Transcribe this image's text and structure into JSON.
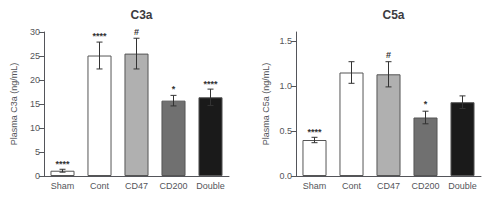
{
  "chart_data": [
    {
      "type": "bar",
      "title": "C3a",
      "ylabel": "Plasma C3a (ng/mL)",
      "categories": [
        "Sham",
        "Cont",
        "CD47",
        "CD200",
        "Double"
      ],
      "values": [
        1.1,
        25.1,
        25.5,
        15.7,
        16.4
      ],
      "errors": [
        0.3,
        2.8,
        3.2,
        1.1,
        1.7
      ],
      "colors": [
        "white",
        "white",
        "#b0b0b0",
        "#707070",
        "#1a1a1a"
      ],
      "ylim": [
        0,
        30
      ],
      "yticks": [
        0,
        5,
        10,
        15,
        20,
        25,
        30
      ],
      "grid": false,
      "annotations": [
        {
          "text": "****",
          "x": 0,
          "y": 1.5
        },
        {
          "text": "****",
          "x": 1,
          "y": 28.2
        },
        {
          "text": "#",
          "x": 2,
          "y": 29.0
        },
        {
          "text": "*",
          "x": 3,
          "y": 17.1
        },
        {
          "text": "****",
          "x": 4,
          "y": 18.3
        }
      ]
    },
    {
      "type": "bar",
      "title": "C5a",
      "ylabel": "Plasma C5a (ng/mL)",
      "categories": [
        "Sham",
        "Cont",
        "CD47",
        "CD200",
        "Double"
      ],
      "values": [
        0.4,
        1.15,
        1.13,
        0.65,
        0.82
      ],
      "errors": [
        0.03,
        0.12,
        0.14,
        0.07,
        0.07
      ],
      "colors": [
        "white",
        "white",
        "#b0b0b0",
        "#707070",
        "#1a1a1a"
      ],
      "ylim": [
        0.0,
        1.6
      ],
      "yticks": [
        {
          "value": 0.0,
          "label": "0.0"
        },
        0.5,
        {
          "value": 1.0,
          "label": "1.0"
        },
        1.5
      ],
      "grid": false,
      "annotations": [
        {
          "text": "****",
          "x": 0,
          "y": 0.44
        },
        {
          "text": "#",
          "x": 2,
          "y": 1.29
        },
        {
          "text": "*",
          "x": 3,
          "y": 0.75
        }
      ]
    }
  ]
}
